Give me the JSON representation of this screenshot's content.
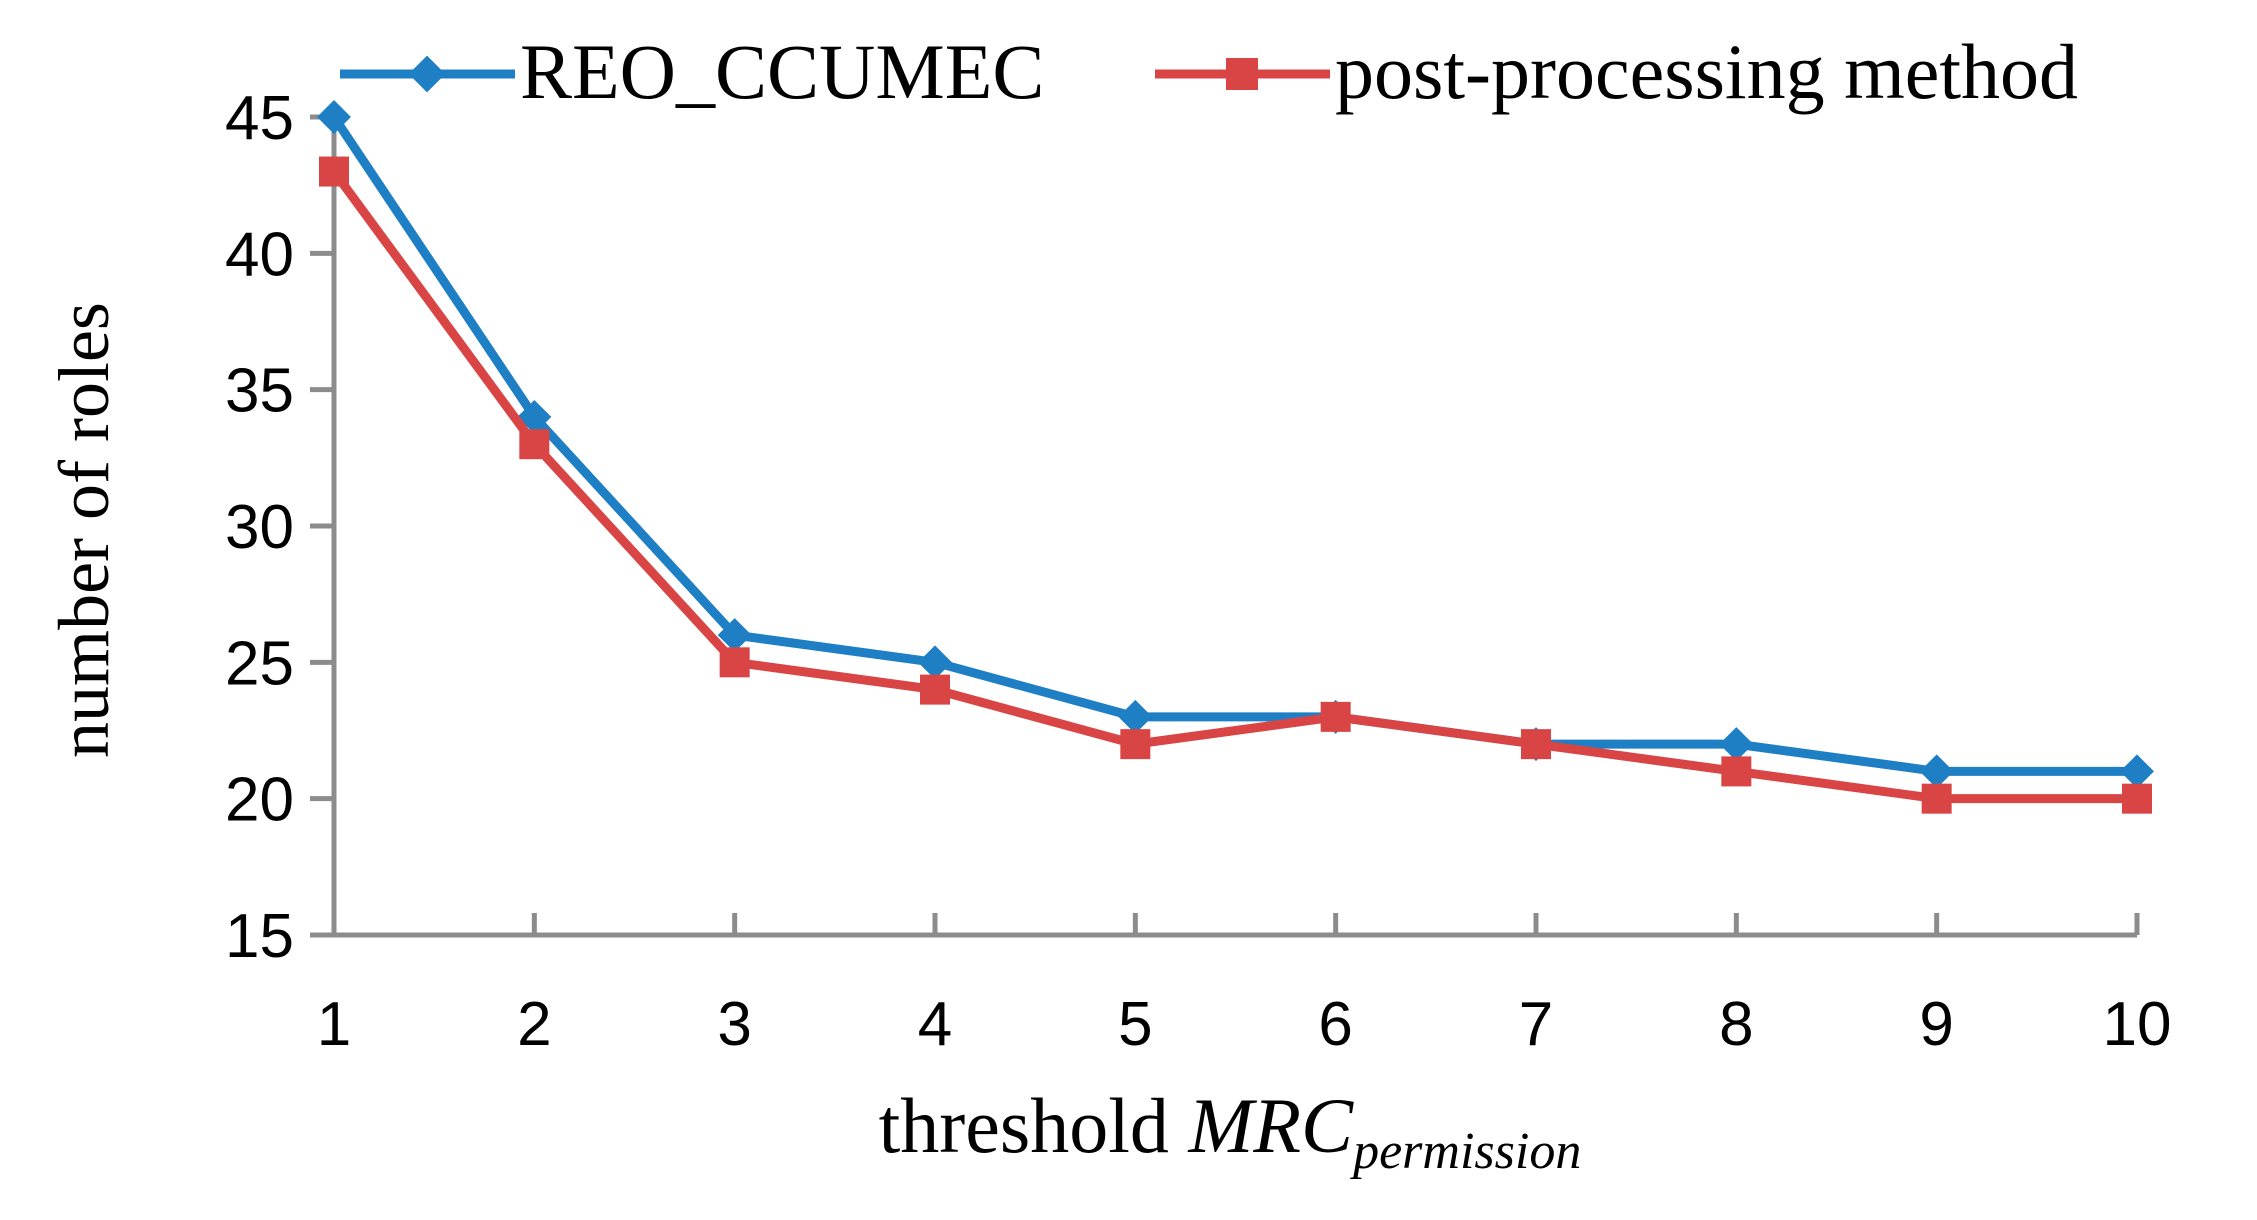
{
  "chart_data": {
    "type": "line",
    "title": "",
    "x": [
      1,
      2,
      3,
      4,
      5,
      6,
      7,
      8,
      9,
      10
    ],
    "series": [
      {
        "name": "REO_CCUMEC",
        "values": [
          45,
          34,
          26,
          25,
          23,
          23,
          22,
          22,
          21,
          21
        ],
        "color": "#1f7fc4",
        "marker": "diamond"
      },
      {
        "name": "post-processing method",
        "values": [
          43,
          33,
          25,
          24,
          22,
          23,
          22,
          21,
          20,
          20
        ],
        "color": "#d94545",
        "marker": "square"
      }
    ],
    "xlabel": {
      "main": "threshold ",
      "italic": "MRC",
      "subscript": "permission"
    },
    "ylabel": "number of roles",
    "xlim": [
      1,
      10
    ],
    "ylim": [
      15,
      45
    ],
    "yticks": [
      15,
      20,
      25,
      30,
      35,
      40,
      45
    ],
    "xticks": [
      1,
      2,
      3,
      4,
      5,
      6,
      7,
      8,
      9,
      10
    ],
    "grid": false,
    "legend": "top"
  }
}
